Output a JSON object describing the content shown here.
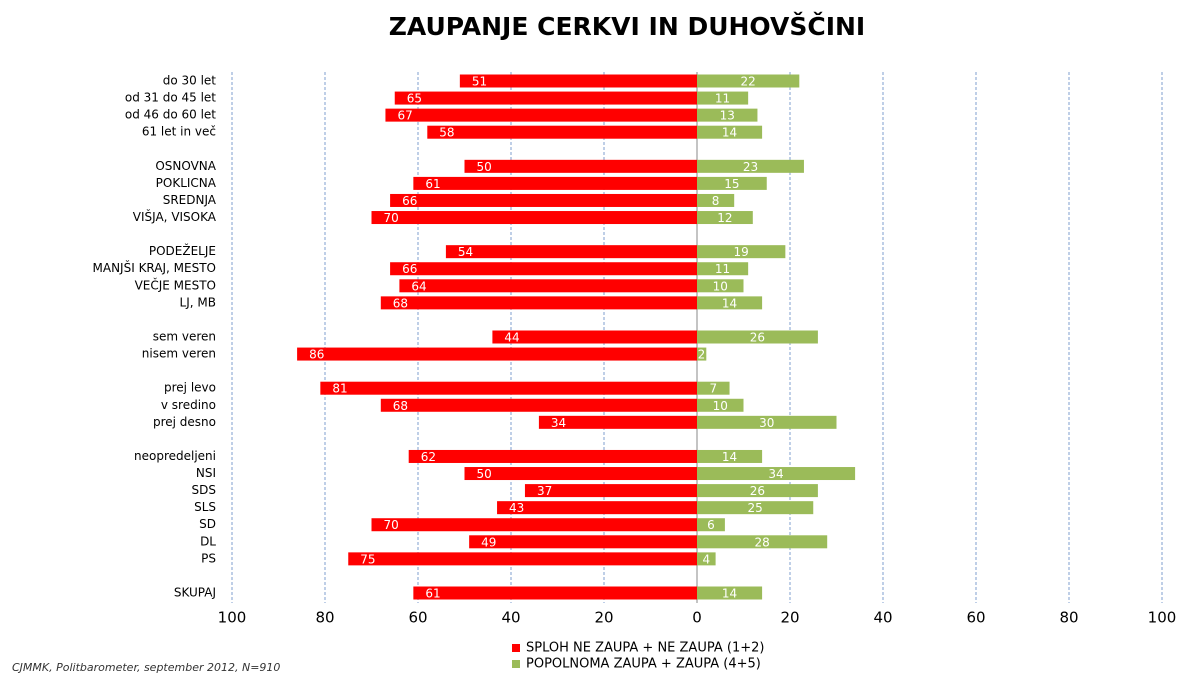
{
  "chart_data": {
    "type": "diverging_bar",
    "title": "ZAUPANJE  CERKVI IN DUHOVŠČINI",
    "categories": [
      "do 30 let",
      "od 31 do 45 let",
      "od 46 do 60 let",
      "61 let in več",
      null,
      "OSNOVNA",
      "POKLICNA",
      "SREDNJA",
      "VIŠJA, VISOKA",
      null,
      "PODEŽELJE",
      "MANJŠI KRAJ, MESTO",
      "VEČJE MESTO",
      "LJ, MB",
      null,
      "sem veren",
      "nisem veren",
      null,
      "prej levo",
      "v sredino",
      "prej desno",
      null,
      "neopredeljeni",
      "NSI",
      "SDS",
      "SLS",
      "SD",
      "DL",
      "PS",
      null,
      "SKUPAJ"
    ],
    "series": [
      {
        "name": "SPLOH NE ZAUPA + NE ZAUPA (1+2)",
        "color": "#ff0000",
        "values": [
          -51,
          -65,
          -67,
          -58,
          null,
          -50,
          -61,
          -66,
          -70,
          null,
          -54,
          -66,
          -64,
          -68,
          null,
          -44,
          -86,
          null,
          -81,
          -68,
          -34,
          null,
          -62,
          -50,
          -37,
          -43,
          -70,
          -49,
          -75,
          null,
          -61
        ],
        "value_labels": [
          "51",
          "65",
          "67",
          "58",
          null,
          "50",
          "61",
          "66",
          "70",
          null,
          "54",
          "66",
          "64",
          "68",
          null,
          "44",
          "86",
          null,
          "81",
          "68",
          "34",
          null,
          "62",
          "50",
          "37",
          "43",
          "70",
          "49",
          "75",
          null,
          "61"
        ]
      },
      {
        "name": "POPOLNOMA ZAUPA + ZAUPA (4+5)",
        "color": "#9bbb59",
        "values": [
          22,
          11,
          13,
          14,
          null,
          23,
          15,
          8,
          12,
          null,
          19,
          11,
          10,
          14,
          null,
          26,
          2,
          null,
          7,
          10,
          30,
          null,
          14,
          34,
          26,
          25,
          6,
          28,
          4,
          null,
          14
        ]
      }
    ],
    "xlim": [
      -100,
      100
    ],
    "xticks": [
      {
        "value": -100,
        "label": "100"
      },
      {
        "value": -80,
        "label": "80"
      },
      {
        "value": -60,
        "label": "60"
      },
      {
        "value": -40,
        "label": "40"
      },
      {
        "value": -20,
        "label": "20"
      },
      0,
      20,
      40,
      60,
      80,
      100
    ],
    "grid": true,
    "legend": "bottom",
    "source": "CJMMK, Politbarometer, september 2012, N=910"
  }
}
